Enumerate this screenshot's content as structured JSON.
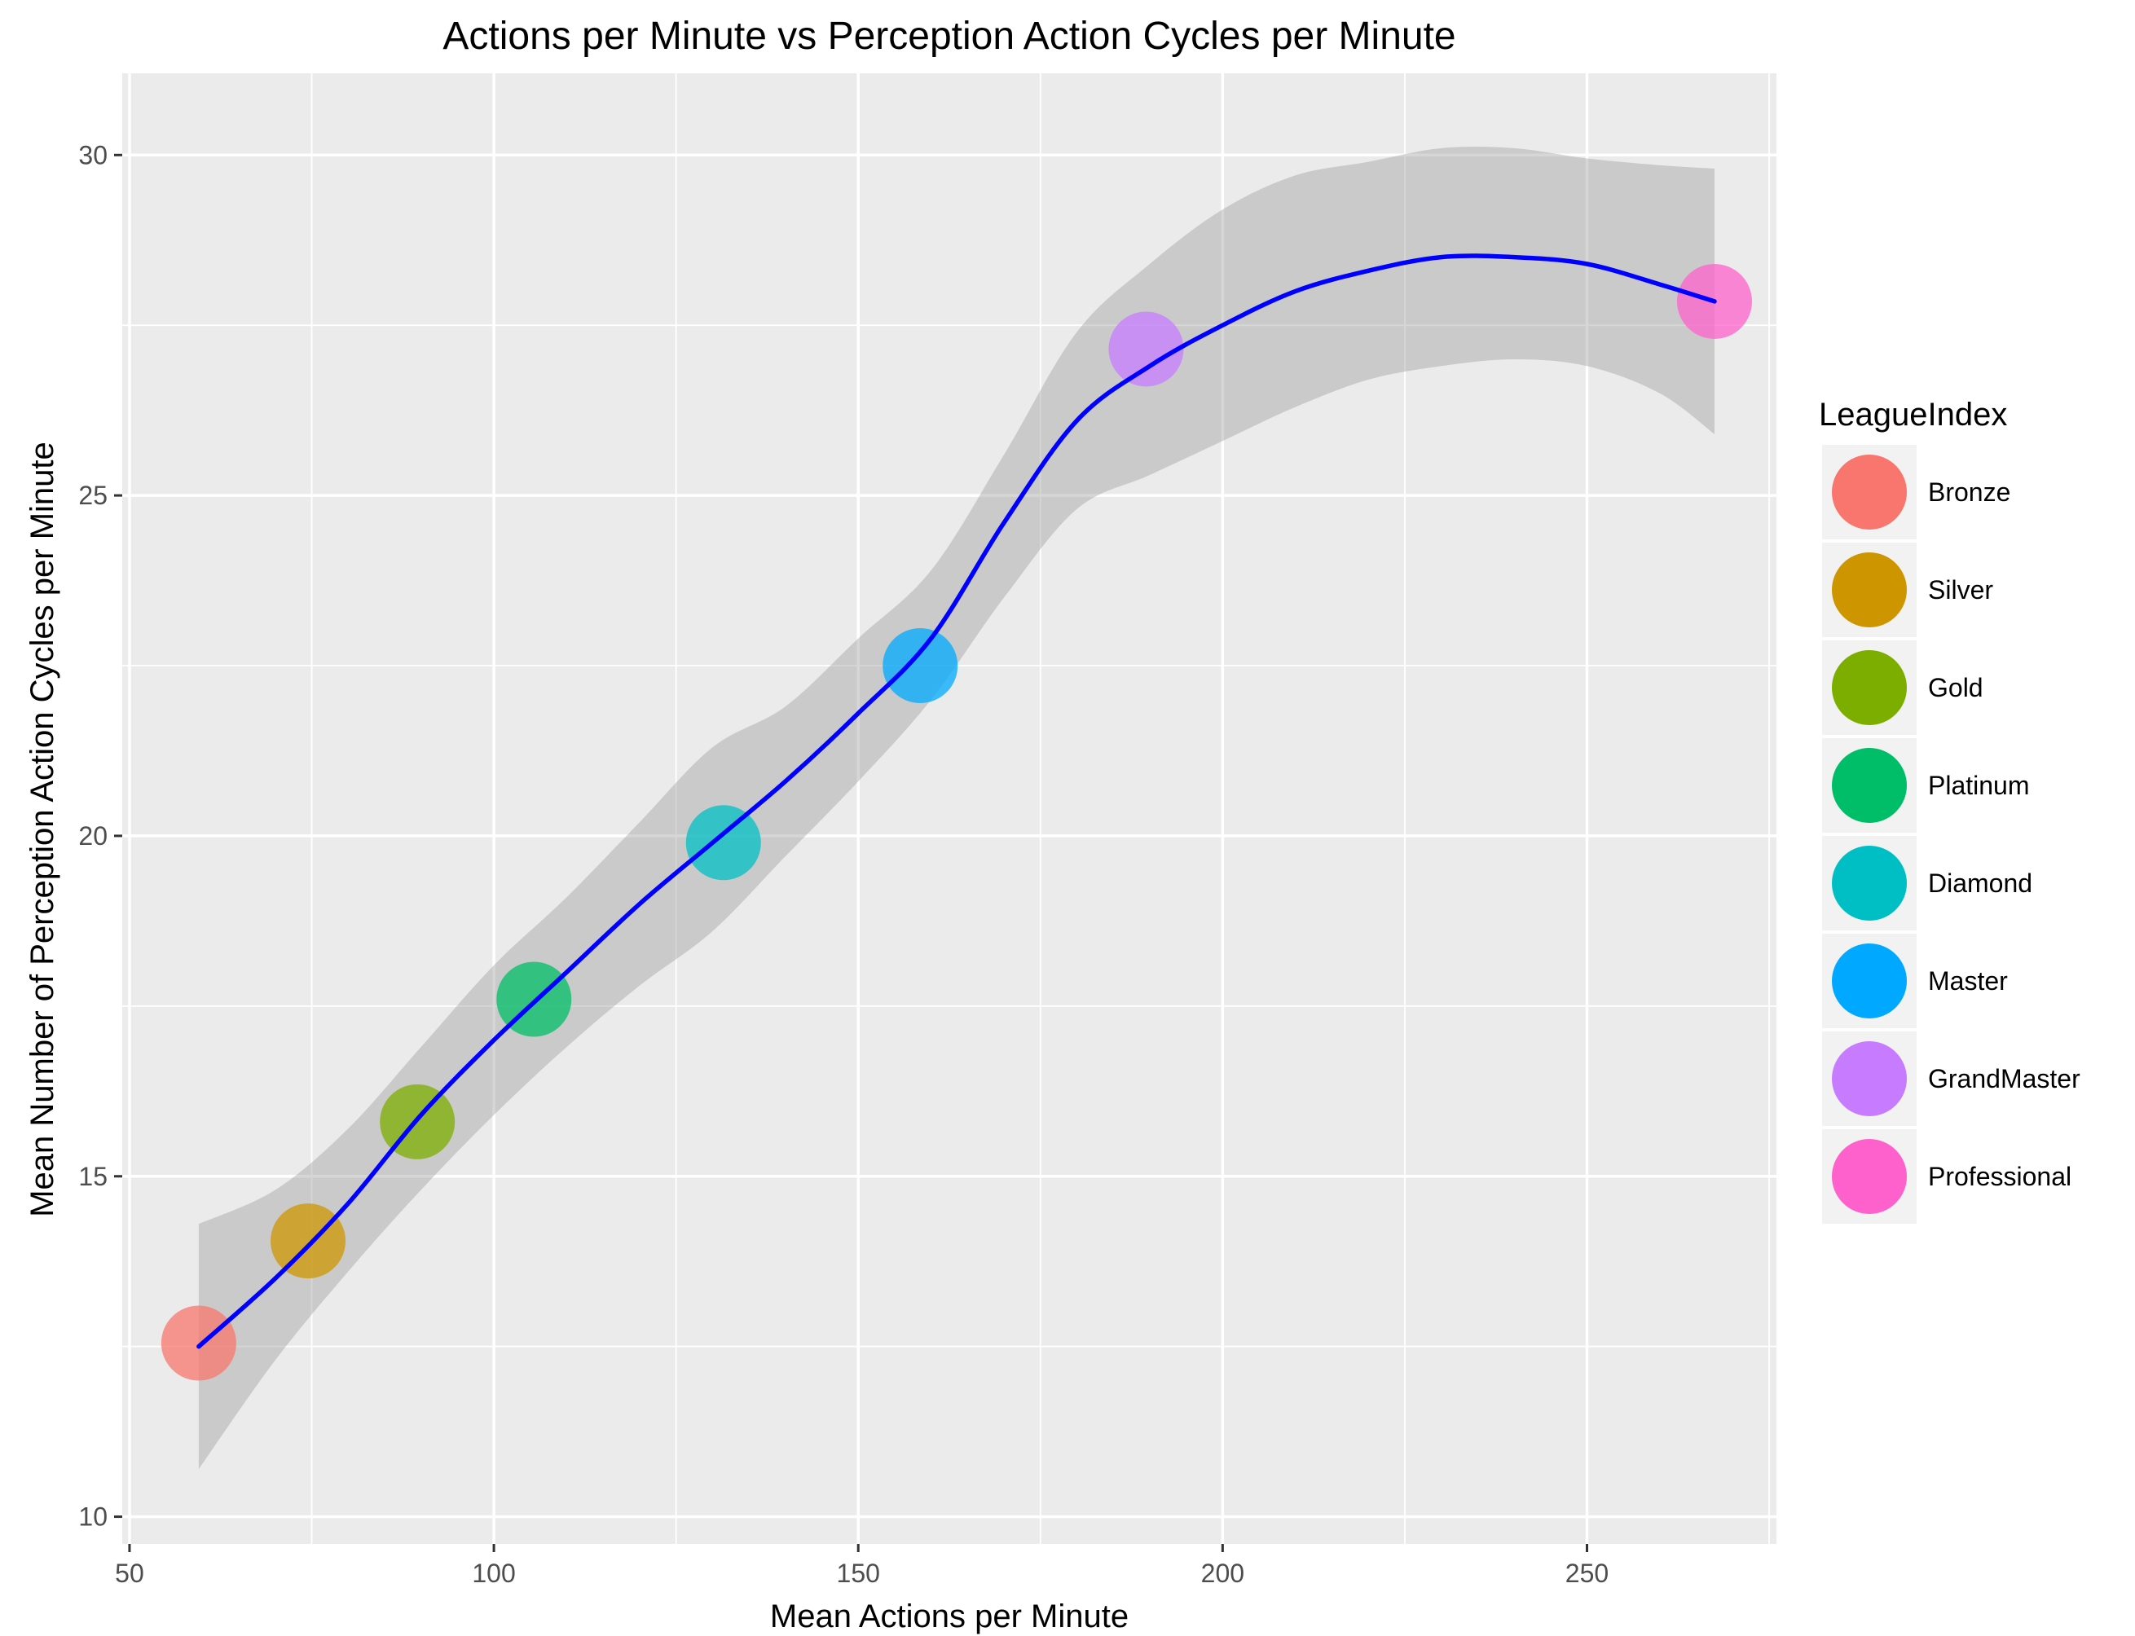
{
  "chart_data": {
    "type": "scatter",
    "title": "Actions per Minute vs Perception Action Cycles per Minute",
    "xlabel": "Mean Actions per Minute",
    "ylabel": "Mean Number of Perception Action Cycles per Minute",
    "xlim": [
      49,
      276
    ],
    "ylim": [
      9.6,
      31.2
    ],
    "x_ticks": [
      50,
      100,
      150,
      200,
      250
    ],
    "y_ticks": [
      10,
      15,
      20,
      25,
      30
    ],
    "grid": true,
    "legend": {
      "title": "LeagueIndex",
      "position": "right"
    },
    "series": [
      {
        "name": "Bronze",
        "color": "#F8766D",
        "x": 59.5,
        "y": 12.55
      },
      {
        "name": "Silver",
        "color": "#CD9600",
        "x": 74.5,
        "y": 14.05
      },
      {
        "name": "Gold",
        "color": "#7CAE00",
        "x": 89.5,
        "y": 15.8
      },
      {
        "name": "Platinum",
        "color": "#00BE67",
        "x": 105.5,
        "y": 17.6
      },
      {
        "name": "Diamond",
        "color": "#00BFC4",
        "x": 131.5,
        "y": 19.9
      },
      {
        "name": "Master",
        "color": "#00A9FF",
        "x": 158.5,
        "y": 22.5
      },
      {
        "name": "GrandMaster",
        "color": "#C77CFF",
        "x": 189.5,
        "y": 27.15
      },
      {
        "name": "Professional",
        "color": "#FF61CC",
        "x": 267.5,
        "y": 27.85
      }
    ],
    "smooth_line": {
      "color": "#0000FF",
      "x": [
        59.5,
        70,
        80,
        90,
        100,
        110,
        120,
        130,
        140,
        150,
        160,
        170,
        180,
        190,
        200,
        210,
        220,
        230,
        240,
        250,
        260,
        267.5
      ],
      "y": [
        12.5,
        13.5,
        14.6,
        15.9,
        17.0,
        18.0,
        19.0,
        19.9,
        20.8,
        21.8,
        22.9,
        24.6,
        26.1,
        26.9,
        27.5,
        28.0,
        28.3,
        28.5,
        28.5,
        28.4,
        28.1,
        27.85
      ],
      "ci_lower": [
        10.7,
        12.3,
        13.6,
        14.8,
        15.9,
        16.9,
        17.8,
        18.6,
        19.7,
        20.8,
        22.0,
        23.5,
        24.8,
        25.3,
        25.8,
        26.3,
        26.7,
        26.9,
        27.0,
        26.9,
        26.5,
        25.9
      ],
      "ci_upper": [
        14.3,
        14.8,
        15.7,
        16.9,
        18.1,
        19.1,
        20.2,
        21.3,
        21.9,
        22.9,
        23.9,
        25.6,
        27.4,
        28.4,
        29.2,
        29.7,
        29.9,
        30.1,
        30.1,
        29.95,
        29.85,
        29.8
      ]
    }
  }
}
